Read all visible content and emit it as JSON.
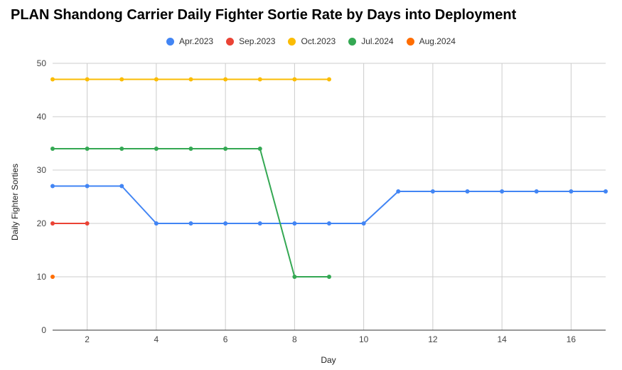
{
  "chart_data": {
    "type": "line",
    "title": "PLAN Shandong Carrier Daily Fighter Sortie Rate by Days into Deployment",
    "xlabel": "Day",
    "ylabel": "Daily Fighter Sorties",
    "xlim": [
      1,
      17
    ],
    "ylim": [
      0,
      50
    ],
    "xticks": [
      2,
      4,
      6,
      8,
      10,
      12,
      14,
      16
    ],
    "yticks": [
      0,
      10,
      20,
      30,
      40,
      50
    ],
    "grid": true,
    "legend_position": "top-center",
    "series": [
      {
        "name": "Apr.2023",
        "color": "#4285F4",
        "x": [
          1,
          2,
          3,
          4,
          5,
          6,
          7,
          8,
          9,
          10,
          11,
          12,
          13,
          14,
          15,
          16,
          17
        ],
        "values": [
          27,
          27,
          27,
          20,
          20,
          20,
          20,
          20,
          20,
          20,
          26,
          26,
          26,
          26,
          26,
          26,
          26
        ]
      },
      {
        "name": "Sep.2023",
        "color": "#EA4335",
        "x": [
          1,
          2
        ],
        "values": [
          20,
          20
        ]
      },
      {
        "name": "Oct.2023",
        "color": "#FBBC04",
        "x": [
          1,
          2,
          3,
          4,
          5,
          6,
          7,
          8,
          9
        ],
        "values": [
          47,
          47,
          47,
          47,
          47,
          47,
          47,
          47,
          47
        ]
      },
      {
        "name": "Jul.2024",
        "color": "#34A853",
        "x": [
          1,
          2,
          3,
          4,
          5,
          6,
          7,
          8,
          9
        ],
        "values": [
          34,
          34,
          34,
          34,
          34,
          34,
          34,
          10,
          10
        ]
      },
      {
        "name": "Aug.2024",
        "color": "#FF6D01",
        "x": [
          1
        ],
        "values": [
          10
        ]
      }
    ]
  }
}
